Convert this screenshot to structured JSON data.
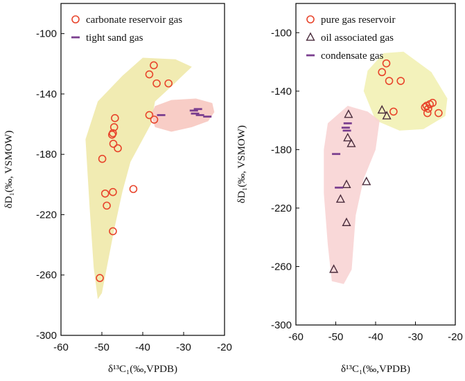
{
  "chart_data": [
    {
      "type": "scatter",
      "panel": "left",
      "xlim": [
        -60,
        -20
      ],
      "ylim": [
        -300,
        -80
      ],
      "xticks": [
        -60,
        -50,
        -40,
        -30,
        -20
      ],
      "yticks": [
        -100,
        -140,
        -180,
        -220,
        -260,
        -300
      ],
      "xlabel": "δ¹³C₁(‰,VPDB)",
      "ylabel": "δD₁(‰, VSMOW)",
      "legend_position": "top-left",
      "series": [
        {
          "name": "carbonate reservoir gas",
          "marker": "circle",
          "color": "#e8452c",
          "points": [
            [
              -37.3,
              -121
            ],
            [
              -38.4,
              -127
            ],
            [
              -36.6,
              -133
            ],
            [
              -33.7,
              -133
            ],
            [
              -38.4,
              -154
            ],
            [
              -37.2,
              -157
            ],
            [
              -46.8,
              -156
            ],
            [
              -47,
              -162
            ],
            [
              -47.3,
              -166
            ],
            [
              -47.5,
              -167
            ],
            [
              -47.2,
              -173
            ],
            [
              -46.1,
              -176
            ],
            [
              -49.9,
              -183
            ],
            [
              -42.3,
              -203
            ],
            [
              -47.3,
              -205
            ],
            [
              -49.2,
              -206
            ],
            [
              -48.8,
              -214
            ],
            [
              -47.3,
              -231
            ],
            [
              -50.5,
              -262
            ]
          ]
        },
        {
          "name": "tight sand gas",
          "marker": "dash",
          "color": "#7b3f8f",
          "points": [
            [
              -35.5,
              -154
            ],
            [
              -27.5,
              -151
            ],
            [
              -26.5,
              -150
            ],
            [
              -26,
              -154
            ],
            [
              -24.2,
              -155
            ],
            [
              -27.2,
              -153
            ]
          ]
        }
      ]
    },
    {
      "type": "scatter",
      "panel": "right",
      "xlim": [
        -60,
        -20
      ],
      "ylim": [
        -300,
        -80
      ],
      "xticks": [
        -60,
        -50,
        -40,
        -30,
        -20
      ],
      "yticks": [
        -100,
        -140,
        -180,
        -220,
        -260,
        -300
      ],
      "xlabel": "δ¹³C₁(‰,VPDB)",
      "ylabel": "δD₁(‰, VSMOW)",
      "legend_position": "top-left",
      "series": [
        {
          "name": "pure gas reservoir",
          "marker": "circle",
          "color": "#e8452c",
          "points": [
            [
              -37.3,
              -121
            ],
            [
              -38.4,
              -127
            ],
            [
              -36.6,
              -133
            ],
            [
              -33.7,
              -133
            ],
            [
              -35.5,
              -154
            ],
            [
              -27.6,
              -151
            ],
            [
              -27.2,
              -150
            ],
            [
              -26.4,
              -149
            ],
            [
              -25.7,
              -148
            ],
            [
              -27,
              -155
            ],
            [
              -24.2,
              -155
            ],
            [
              -26.8,
              -152
            ]
          ]
        },
        {
          "name": "oil associated gas",
          "marker": "triangle",
          "color": "#4a2c3c",
          "points": [
            [
              -46.8,
              -156
            ],
            [
              -38.4,
              -153
            ],
            [
              -37.2,
              -157
            ],
            [
              -47,
              -172
            ],
            [
              -46.1,
              -176
            ],
            [
              -42.3,
              -202
            ],
            [
              -47.3,
              -204
            ],
            [
              -48.8,
              -214
            ],
            [
              -47.3,
              -230
            ],
            [
              -50.5,
              -262
            ]
          ]
        },
        {
          "name": "condensate  gas",
          "marker": "dash",
          "color": "#7b3f8f",
          "points": [
            [
              -47,
              -162
            ],
            [
              -47.5,
              -165
            ],
            [
              -47.2,
              -167
            ],
            [
              -49.9,
              -183
            ],
            [
              -49.2,
              -206
            ]
          ]
        }
      ]
    }
  ]
}
